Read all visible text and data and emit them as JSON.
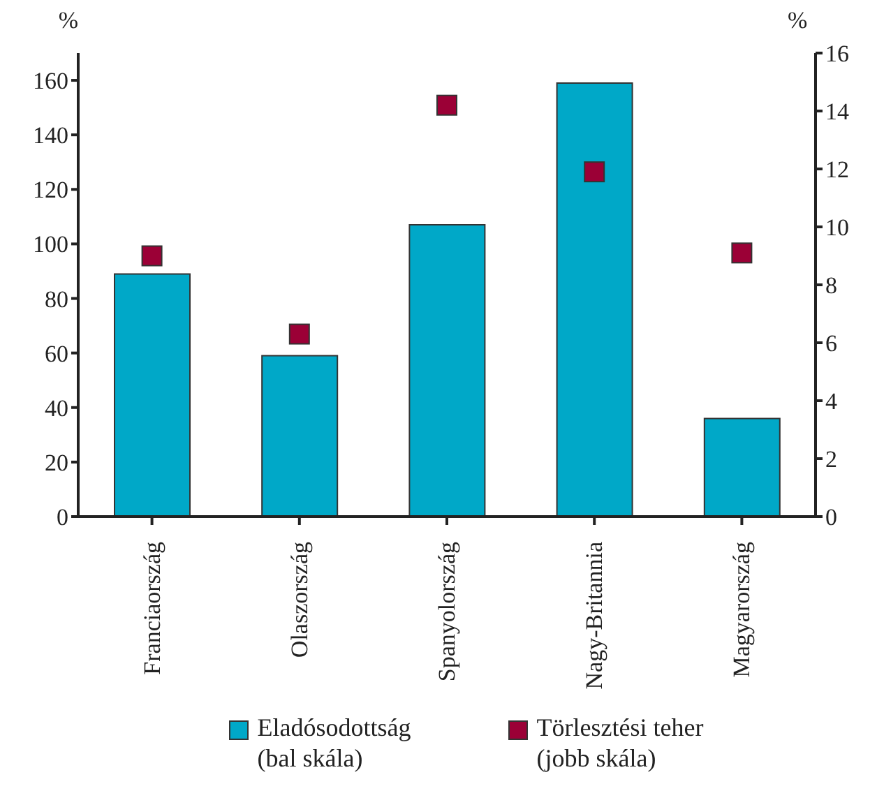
{
  "chart_data": {
    "type": "bar",
    "categories": [
      "Franciaország",
      "Olaszország",
      "Spanyolország",
      "Nagy-Britannia",
      "Magyarország"
    ],
    "ylabel": "%",
    "y2label": "%",
    "series": [
      {
        "name": "Eladósodottság\n(bal skála)",
        "color": "#00a8c8",
        "values": [
          89,
          59,
          107,
          159,
          36
        ]
      },
      {
        "name": "Törlesztési teher\n(jobb skála)",
        "type": "scatter",
        "axis": "y2",
        "color": "#9b0036",
        "values": [
          9.0,
          6.3,
          14.2,
          11.9,
          9.1
        ]
      }
    ],
    "ylim": [
      0,
      170
    ],
    "yticks": [
      0,
      20,
      40,
      60,
      80,
      100,
      120,
      140,
      160
    ],
    "y2lim": [
      0,
      16
    ],
    "y2ticks": [
      0,
      2,
      4,
      6,
      8,
      10,
      12,
      14,
      16
    ],
    "grid": false,
    "legend": "bottom",
    "marker": "square"
  }
}
